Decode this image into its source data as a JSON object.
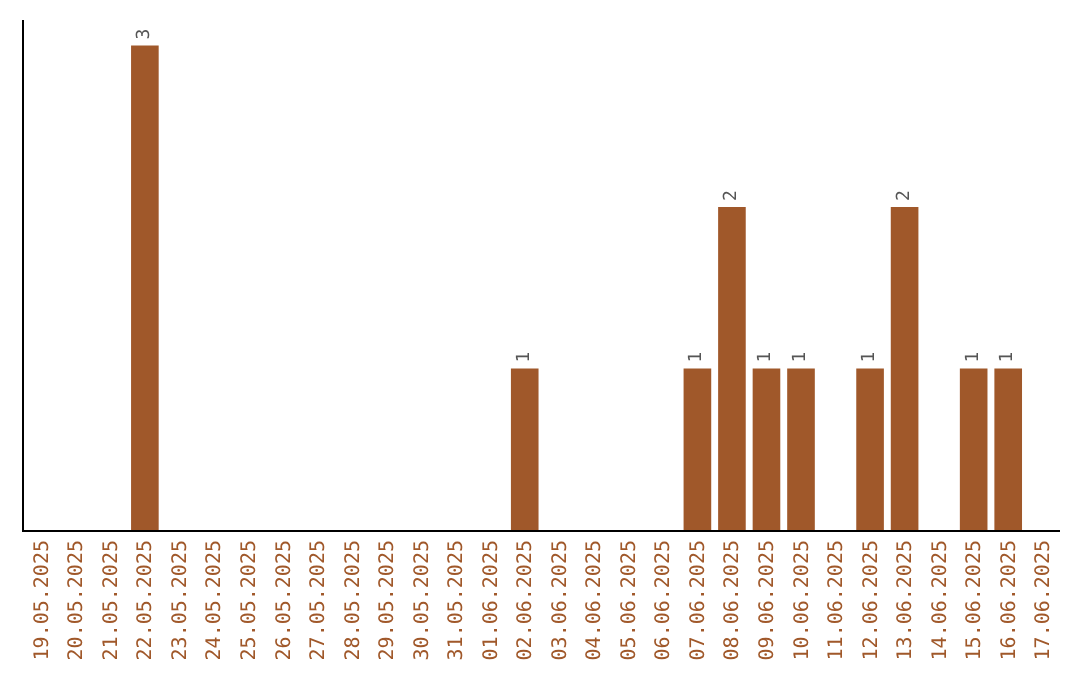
{
  "chart_data": {
    "type": "bar",
    "categories": [
      "19.05.2025",
      "20.05.2025",
      "21.05.2025",
      "22.05.2025",
      "23.05.2025",
      "24.05.2025",
      "25.05.2025",
      "26.05.2025",
      "27.05.2025",
      "28.05.2025",
      "29.05.2025",
      "30.05.2025",
      "31.05.2025",
      "01.06.2025",
      "02.06.2025",
      "03.06.2025",
      "04.06.2025",
      "05.06.2025",
      "06.06.2025",
      "07.06.2025",
      "08.06.2025",
      "09.06.2025",
      "10.06.2025",
      "11.06.2025",
      "12.06.2025",
      "13.06.2025",
      "14.06.2025",
      "15.06.2025",
      "16.06.2025",
      "17.06.2025"
    ],
    "values": [
      0,
      0,
      0,
      3,
      0,
      0,
      0,
      0,
      0,
      0,
      0,
      0,
      0,
      0,
      1,
      0,
      0,
      0,
      0,
      1,
      2,
      1,
      1,
      0,
      1,
      2,
      0,
      1,
      1,
      0
    ],
    "value_labels": [
      null,
      null,
      null,
      "3",
      null,
      null,
      null,
      null,
      null,
      null,
      null,
      null,
      null,
      null,
      "1",
      null,
      null,
      null,
      null,
      "1",
      "2",
      "1",
      "1",
      null,
      "1",
      "2",
      null,
      "1",
      "1",
      null
    ],
    "color": "#a0582a"
  }
}
